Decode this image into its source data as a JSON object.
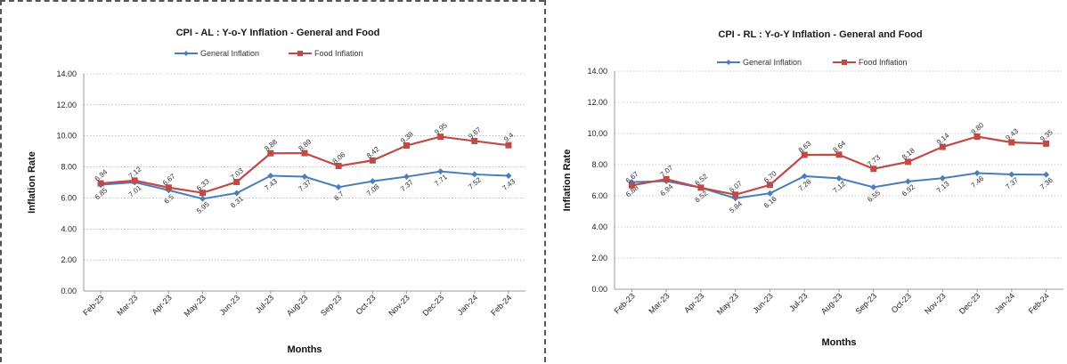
{
  "chart_data": [
    {
      "type": "line",
      "title": "CPI - AL : Y-o-Y Inflation - General and Food",
      "xlabel": "Months",
      "ylabel": "Inflation Rate",
      "ylim": [
        0,
        14
      ],
      "yticks": [
        "0.00",
        "2.00",
        "4.00",
        "6.00",
        "8.00",
        "10.00",
        "12.00",
        "14.00"
      ],
      "grid": true,
      "legend": "top",
      "categories": [
        "Feb-23",
        "Mar-23",
        "Apr-23",
        "May-23",
        "Jun-23",
        "Jul-23",
        "Aug-23",
        "Sep-23",
        "Oct-23",
        "Nov-23",
        "Dec-23",
        "Jan-24",
        "Feb-24"
      ],
      "series": [
        {
          "name": "General Inflation",
          "color": "#4a7ebb",
          "values": [
            6.85,
            7.01,
            6.5,
            5.95,
            6.31,
            7.43,
            7.37,
            6.7,
            7.08,
            7.37,
            7.71,
            7.52,
            7.43
          ],
          "labels": [
            "6.85",
            "7.01",
            "6.5",
            "5.95",
            "6.31",
            "7.43",
            "7.37",
            "6.7",
            "7.08",
            "7.37",
            "7.71",
            "7.52",
            "7.43"
          ]
        },
        {
          "name": "Food Inflation",
          "color": "#be4b48",
          "values": [
            6.94,
            7.12,
            6.67,
            6.33,
            7.03,
            8.88,
            8.89,
            8.06,
            8.42,
            9.38,
            9.95,
            9.67,
            9.4
          ],
          "labels": [
            "6.94",
            "7.12",
            "6.67",
            "6.33",
            "7.03",
            "8.88",
            "8.89",
            "8.06",
            "8.42",
            "9.38",
            "9.95",
            "9.67",
            "9.4"
          ]
        }
      ]
    },
    {
      "type": "line",
      "title": "CPI - RL : Y-o-Y Inflation - General and Food",
      "xlabel": "Months",
      "ylabel": "Inflation Rate",
      "ylim": [
        0,
        14
      ],
      "yticks": [
        "0.00",
        "2.00",
        "4.00",
        "6.00",
        "8.00",
        "10.00",
        "12.00",
        "14.00"
      ],
      "grid": true,
      "legend": "top",
      "categories": [
        "Feb-23",
        "Mar-23",
        "Apr-23",
        "May-23",
        "Jun-23",
        "Jul-23",
        "Aug-23",
        "Sep-23",
        "Oct-23",
        "Nov-23",
        "Dec-23",
        "Jan-24",
        "Feb-24"
      ],
      "series": [
        {
          "name": "General Inflation",
          "color": "#4a7ebb",
          "values": [
            6.88,
            6.94,
            6.52,
            5.84,
            6.16,
            7.26,
            7.12,
            6.55,
            6.92,
            7.13,
            7.46,
            7.37,
            7.36
          ],
          "labels": [
            "6.88",
            "6.94",
            "6.52",
            "5.84",
            "6.16",
            "7.26",
            "7.12",
            "6.55",
            "6.92",
            "7.13",
            "7.46",
            "7.37",
            "7.36"
          ]
        },
        {
          "name": "Food Inflation",
          "color": "#be4b48",
          "values": [
            6.67,
            7.07,
            6.52,
            6.07,
            6.7,
            8.63,
            8.64,
            7.73,
            8.18,
            9.14,
            9.8,
            9.43,
            9.35
          ],
          "labels": [
            "6.67",
            "7.07",
            "6.52",
            "6.07",
            "6.70",
            "8.63",
            "8.64",
            "7.73",
            "8.18",
            "9.14",
            "9.80",
            "9.43",
            "9.35"
          ]
        }
      ]
    }
  ]
}
